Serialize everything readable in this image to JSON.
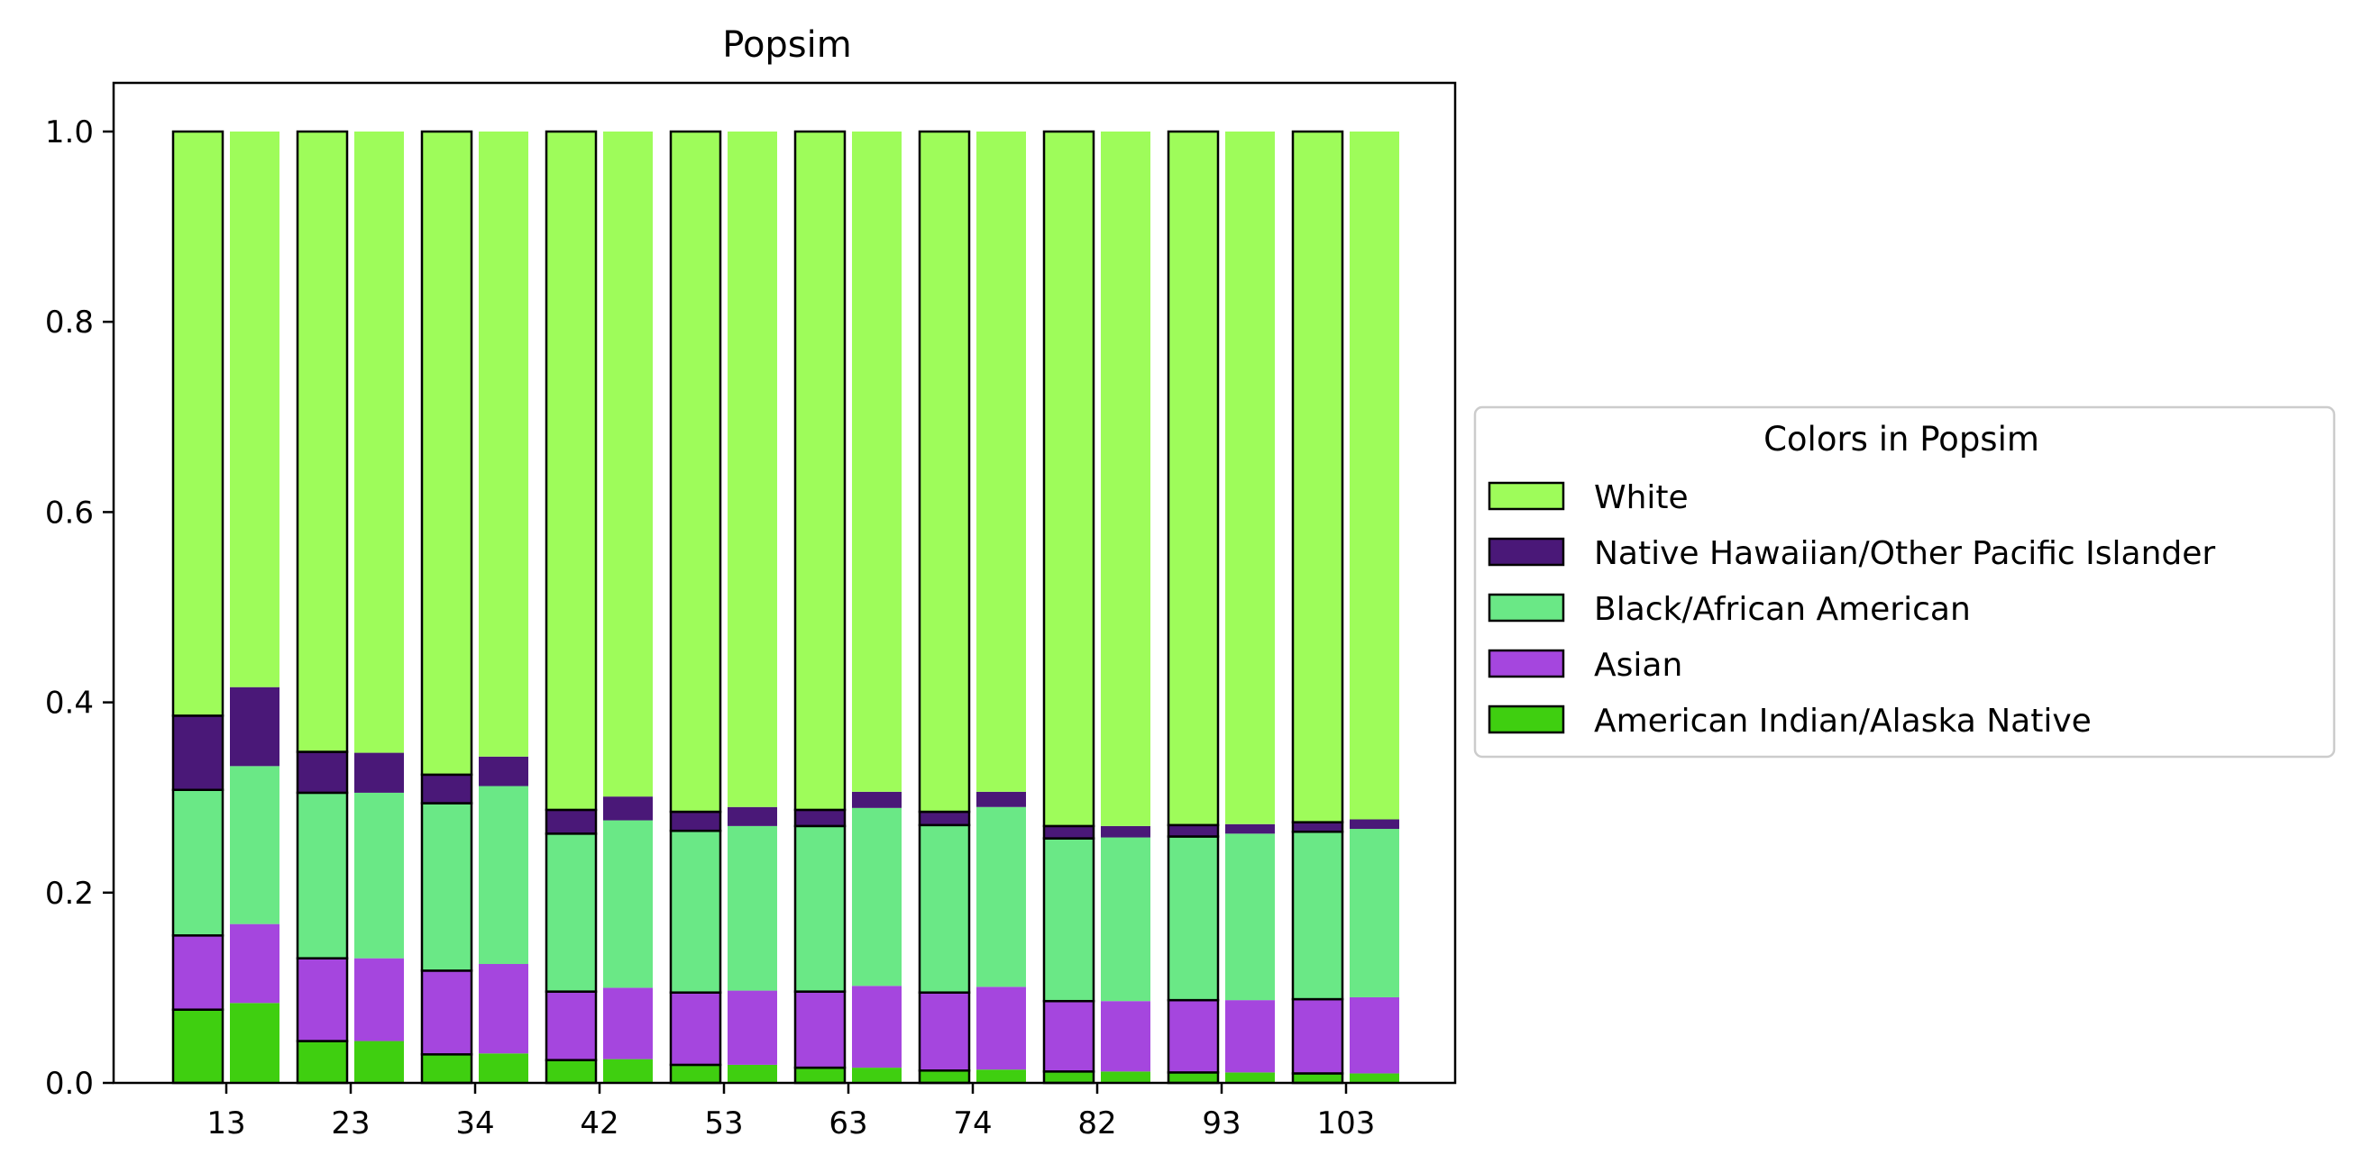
{
  "chart_data": {
    "type": "bar",
    "stacked": true,
    "title": "Popsim",
    "xlabel": "",
    "ylabel": "",
    "ylim": [
      0,
      1.05
    ],
    "yticks": [
      "0.0",
      "0.2",
      "0.4",
      "0.6",
      "0.8",
      "1.0"
    ],
    "categories": [
      "13",
      "23",
      "34",
      "42",
      "53",
      "63",
      "74",
      "82",
      "93",
      "103"
    ],
    "bars_per_category": [
      "outlined",
      "plain"
    ],
    "legend": {
      "title": "Colors in Popsim",
      "placement": "center-right-outside",
      "order": [
        "White",
        "Native Hawaiian/Other Pacific Islander",
        "Black/African American",
        "Asian",
        "American Indian/Alaska Native"
      ]
    },
    "series": [
      {
        "name": "American Indian/Alaska Native",
        "color": "#3fcf10",
        "values": [
          [
            0.077,
            0.084
          ],
          [
            0.044,
            0.044
          ],
          [
            0.03,
            0.031
          ],
          [
            0.024,
            0.025
          ],
          [
            0.019,
            0.019
          ],
          [
            0.016,
            0.016
          ],
          [
            0.013,
            0.014
          ],
          [
            0.012,
            0.012
          ],
          [
            0.011,
            0.011
          ],
          [
            0.01,
            0.01
          ]
        ]
      },
      {
        "name": "Asian",
        "color": "#a546de",
        "values": [
          [
            0.078,
            0.083
          ],
          [
            0.087,
            0.087
          ],
          [
            0.088,
            0.094
          ],
          [
            0.072,
            0.075
          ],
          [
            0.076,
            0.078
          ],
          [
            0.08,
            0.086
          ],
          [
            0.082,
            0.087
          ],
          [
            0.074,
            0.074
          ],
          [
            0.076,
            0.076
          ],
          [
            0.078,
            0.08
          ]
        ]
      },
      {
        "name": "Black/African American",
        "color": "#6ae886",
        "values": [
          [
            0.153,
            0.166
          ],
          [
            0.174,
            0.174
          ],
          [
            0.176,
            0.187
          ],
          [
            0.166,
            0.176
          ],
          [
            0.17,
            0.173
          ],
          [
            0.174,
            0.187
          ],
          [
            0.176,
            0.189
          ],
          [
            0.171,
            0.172
          ],
          [
            0.172,
            0.175
          ],
          [
            0.176,
            0.177
          ]
        ]
      },
      {
        "name": "Native Hawaiian/Other Pacific Islander",
        "color": "#4a1878",
        "values": [
          [
            0.078,
            0.083
          ],
          [
            0.043,
            0.042
          ],
          [
            0.03,
            0.031
          ],
          [
            0.025,
            0.025
          ],
          [
            0.02,
            0.02
          ],
          [
            0.017,
            0.017
          ],
          [
            0.014,
            0.016
          ],
          [
            0.013,
            0.012
          ],
          [
            0.012,
            0.01
          ],
          [
            0.01,
            0.01
          ]
        ]
      },
      {
        "name": "White",
        "color": "#9efc5a",
        "values": [
          [
            0.614,
            0.584
          ],
          [
            0.652,
            0.653
          ],
          [
            0.676,
            0.657
          ],
          [
            0.713,
            0.699
          ],
          [
            0.715,
            0.71
          ],
          [
            0.713,
            0.694
          ],
          [
            0.715,
            0.694
          ],
          [
            0.73,
            0.73
          ],
          [
            0.729,
            0.728
          ],
          [
            0.726,
            0.723
          ]
        ]
      }
    ]
  }
}
